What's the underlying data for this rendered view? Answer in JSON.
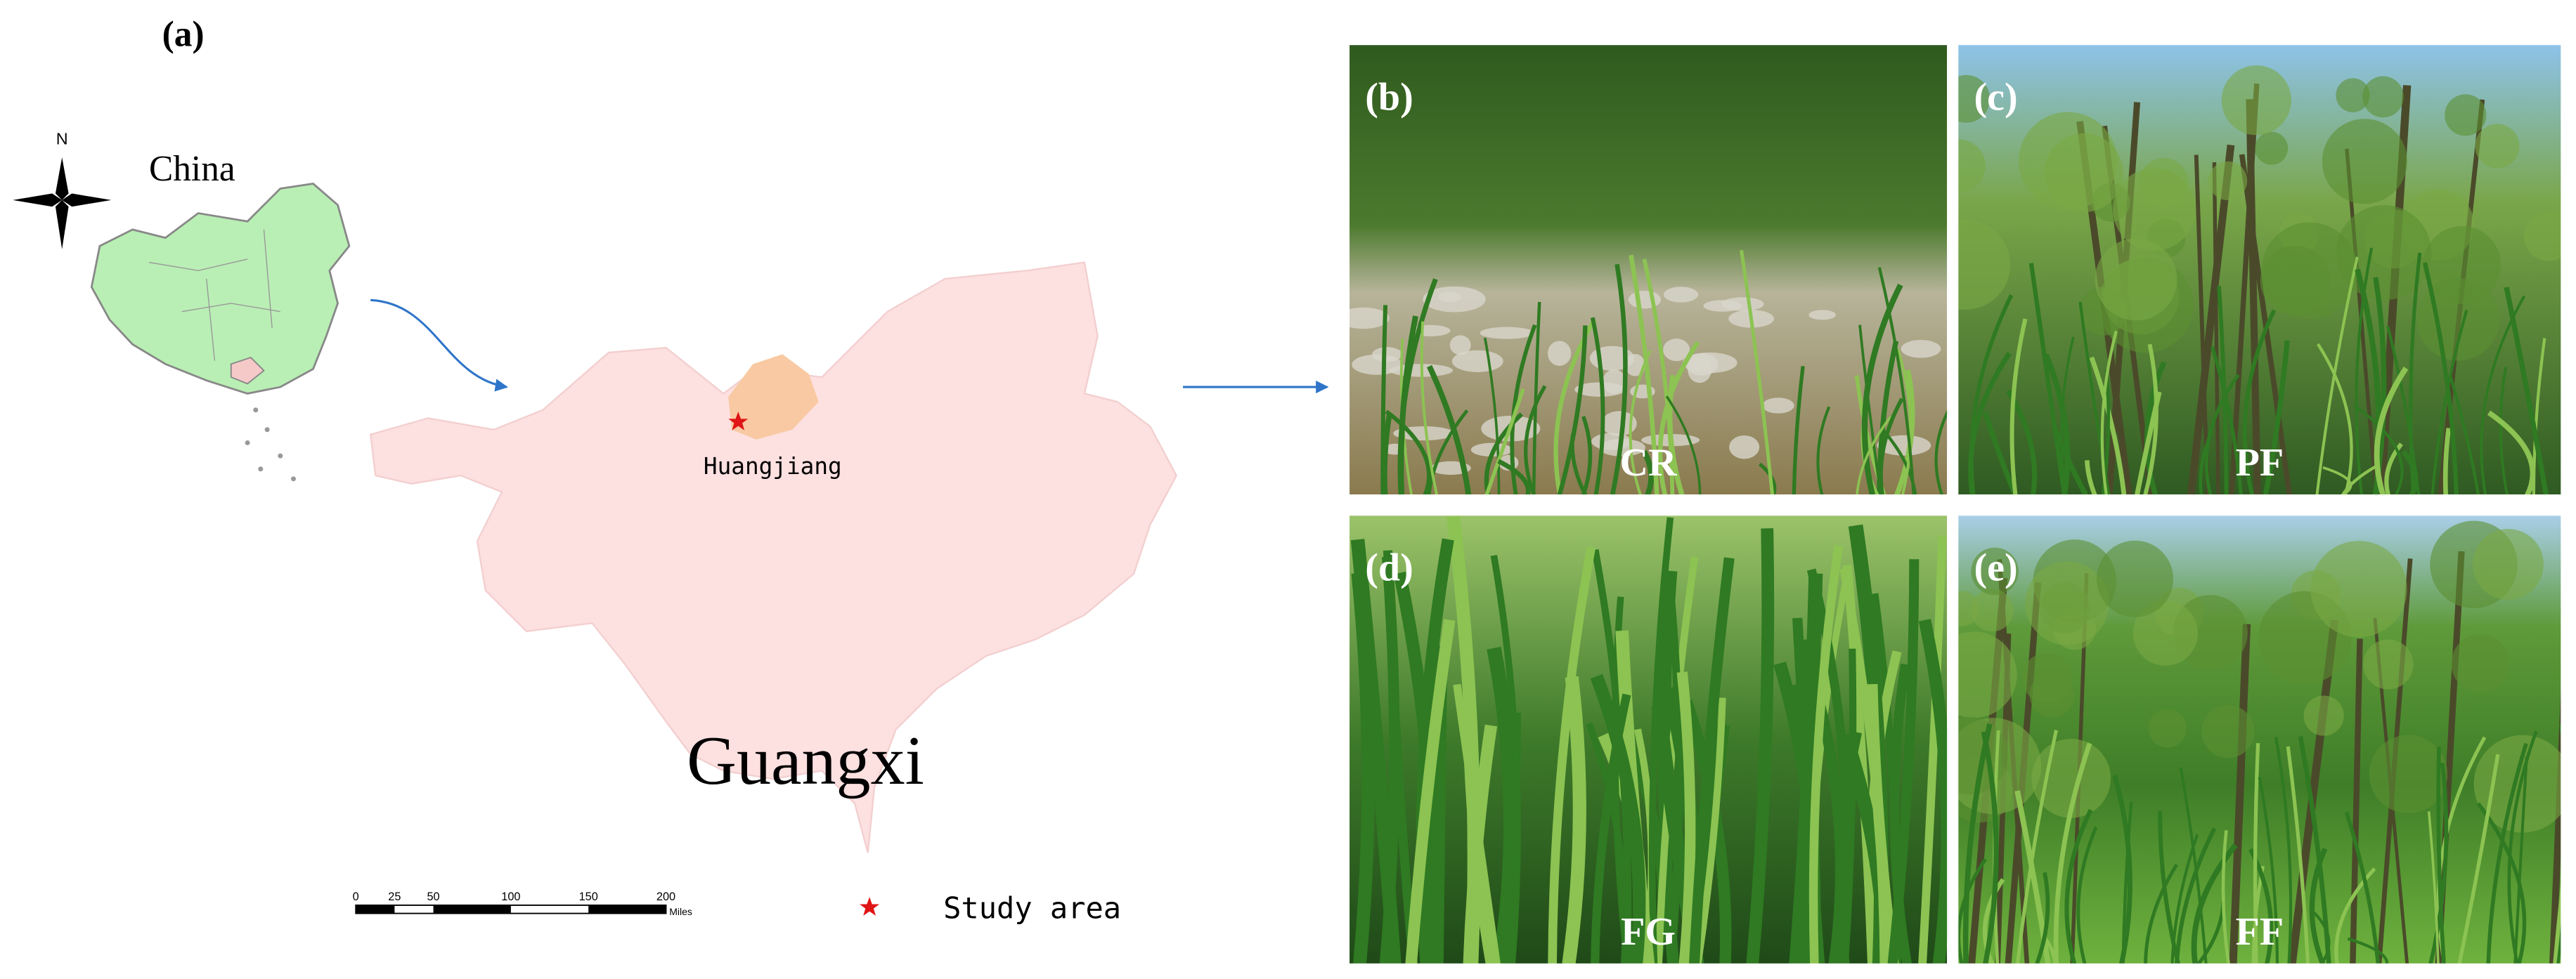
{
  "panel_a": {
    "label": "(a)",
    "compass_label": "N",
    "country": "China",
    "county": "Huangjiang",
    "province": "Guangxi",
    "scale_bar": {
      "ticks": [
        0,
        25,
        50,
        100,
        150,
        200
      ],
      "unit": "Miles"
    },
    "legend": "Study area"
  },
  "photos": [
    {
      "label": "(b)",
      "site": "CR"
    },
    {
      "label": "(c)",
      "site": "PF"
    },
    {
      "label": "(d)",
      "site": "FG"
    },
    {
      "label": "(e)",
      "site": "FF"
    }
  ]
}
